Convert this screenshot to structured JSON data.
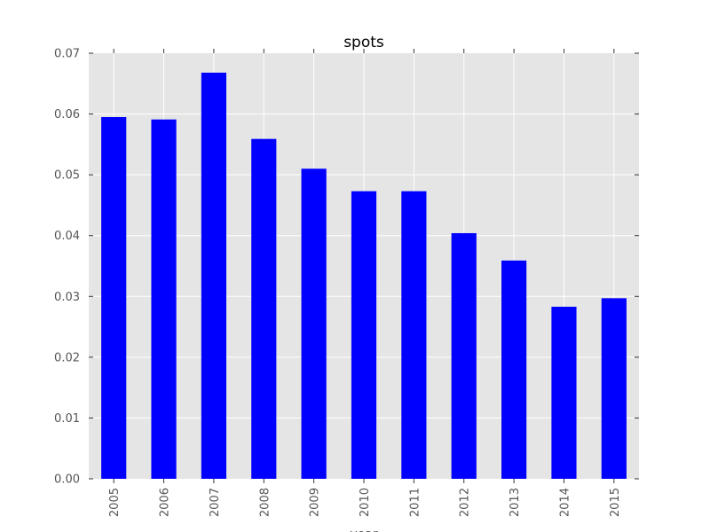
{
  "chart_data": {
    "type": "bar",
    "title": "spots",
    "xlabel": "year",
    "ylabel": "",
    "categories": [
      "2005",
      "2006",
      "2007",
      "2008",
      "2009",
      "2010",
      "2011",
      "2012",
      "2013",
      "2014",
      "2015"
    ],
    "values": [
      0.0595,
      0.0591,
      0.0668,
      0.0559,
      0.051,
      0.0473,
      0.0473,
      0.0404,
      0.0359,
      0.0283,
      0.0297
    ],
    "ylim": [
      0,
      0.07
    ],
    "yticks": [
      "0.00",
      "0.01",
      "0.02",
      "0.03",
      "0.04",
      "0.05",
      "0.06",
      "0.07"
    ],
    "grid": true,
    "legend": false,
    "colors": {
      "bar": "#0000ff",
      "plot_background": "#e5e5e5",
      "grid": "#ffffff",
      "tick_label": "#555555"
    }
  }
}
